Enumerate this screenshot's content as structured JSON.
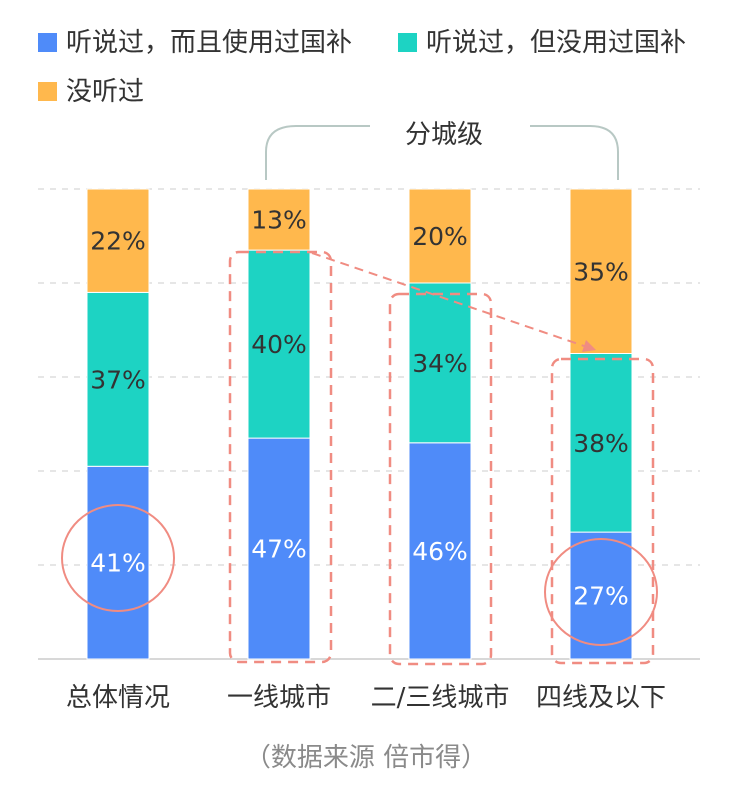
{
  "chart_data": {
    "type": "bar",
    "stacked": true,
    "categories": [
      "总体情况",
      "一线城市",
      "二/三线城市",
      "四线及以下"
    ],
    "series": [
      {
        "name": "听说过，而且使用过国补",
        "values": [
          41,
          47,
          46,
          27
        ],
        "color": "#4f8bf9"
      },
      {
        "name": "听说过，但没用过国补",
        "values": [
          37,
          40,
          34,
          38
        ],
        "color": "#1dd3c3"
      },
      {
        "name": "没听过",
        "values": [
          22,
          13,
          20,
          35
        ],
        "color": "#ffb84d"
      }
    ],
    "value_labels": [
      [
        "41%",
        "47%",
        "46%",
        "27%"
      ],
      [
        "37%",
        "40%",
        "34%",
        "38%"
      ],
      [
        "22%",
        "13%",
        "20%",
        "35%"
      ]
    ],
    "ylim": [
      0,
      100
    ],
    "grid": true,
    "legend_position": "top-left",
    "group_label": "分城级",
    "source": "（数据来源  倍市得）",
    "annotation_colors": {
      "highlight": "#f08c82",
      "bracket": "#b8c8c4"
    }
  }
}
